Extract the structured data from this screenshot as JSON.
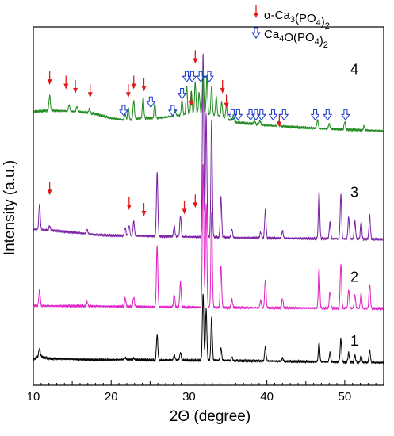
{
  "chart_data": {
    "type": "line",
    "title": "",
    "xlabel": "2Θ (degree)",
    "ylabel": "Intensity (a.u.)",
    "xlim": [
      10,
      55
    ],
    "xticks": [
      10,
      20,
      30,
      40,
      50
    ],
    "xtick_labels": [
      "10",
      "20",
      "30",
      "40",
      "50"
    ],
    "yticks": [],
    "grid": false,
    "legend": {
      "placement": "top-right",
      "entries": [
        {
          "marker": "filled-arrow",
          "color": "#e31a1c",
          "label_parts": [
            {
              "t": "α-Ca"
            },
            {
              "t": "3",
              "sub": true
            },
            {
              "t": "(PO"
            },
            {
              "t": "4",
              "sub": true
            },
            {
              "t": ")"
            },
            {
              "t": "2",
              "sub": true
            }
          ]
        },
        {
          "marker": "open-arrow",
          "color": "#1f3fd1",
          "label_parts": [
            {
              "t": "Ca"
            },
            {
              "t": "4",
              "sub": true
            },
            {
              "t": "O(PO"
            },
            {
              "t": "4",
              "sub": true
            },
            {
              "t": ")"
            },
            {
              "t": "2",
              "sub": true
            }
          ]
        }
      ]
    },
    "series": [
      {
        "name": "1",
        "color": "#000000",
        "baseline": 0,
        "background": [
          [
            10,
            0.06
          ],
          [
            10.7,
            0.14
          ],
          [
            12,
            0.08
          ],
          [
            14,
            0.07
          ],
          [
            16,
            0.06
          ],
          [
            18,
            0.05
          ],
          [
            20,
            0.05
          ],
          [
            22,
            0.06
          ],
          [
            24,
            0.05
          ],
          [
            26,
            0.04
          ],
          [
            28,
            0.05
          ],
          [
            30,
            0.04
          ],
          [
            33,
            0.04
          ],
          [
            36,
            0.03
          ],
          [
            40,
            0.02
          ],
          [
            44,
            0.01
          ],
          [
            48,
            0.0
          ],
          [
            52,
            -0.01
          ],
          [
            55,
            -0.02
          ]
        ],
        "peaks": [
          [
            10.8,
            0.18
          ],
          [
            21.8,
            0.04
          ],
          [
            22.9,
            0.03
          ],
          [
            25.9,
            0.6
          ],
          [
            28.1,
            0.12
          ],
          [
            28.9,
            0.18
          ],
          [
            31.8,
            1.58
          ],
          [
            32.2,
            1.2
          ],
          [
            32.9,
            1.0
          ],
          [
            34.1,
            0.3
          ],
          [
            35.5,
            0.08
          ],
          [
            39.8,
            0.35
          ],
          [
            42.0,
            0.08
          ],
          [
            46.7,
            0.46
          ],
          [
            48.1,
            0.22
          ],
          [
            49.5,
            0.55
          ],
          [
            50.5,
            0.22
          ],
          [
            51.3,
            0.16
          ],
          [
            52.1,
            0.16
          ],
          [
            53.2,
            0.3
          ]
        ]
      },
      {
        "name": "2",
        "color": "#e020c8",
        "baseline": 1.3,
        "background": [
          [
            10,
            0.02
          ],
          [
            15,
            0.02
          ],
          [
            25,
            0.0
          ],
          [
            35,
            -0.02
          ],
          [
            45,
            -0.03
          ],
          [
            55,
            -0.04
          ]
        ],
        "peaks": [
          [
            10.8,
            0.38
          ],
          [
            16.9,
            0.1
          ],
          [
            21.8,
            0.2
          ],
          [
            22.9,
            0.22
          ],
          [
            25.9,
            1.45
          ],
          [
            28.1,
            0.3
          ],
          [
            28.9,
            0.58
          ],
          [
            31.8,
            3.4
          ],
          [
            32.2,
            2.45
          ],
          [
            32.9,
            2.25
          ],
          [
            34.1,
            0.98
          ],
          [
            35.5,
            0.2
          ],
          [
            39.2,
            0.18
          ],
          [
            39.8,
            0.66
          ],
          [
            42.0,
            0.22
          ],
          [
            46.7,
            0.95
          ],
          [
            48.1,
            0.4
          ],
          [
            49.5,
            1.05
          ],
          [
            50.5,
            0.45
          ],
          [
            51.3,
            0.32
          ],
          [
            52.1,
            0.36
          ],
          [
            53.2,
            0.58
          ]
        ]
      },
      {
        "name": "3",
        "color": "#7a1fa3",
        "baseline": 2.95,
        "background": [
          [
            10,
            0.18
          ],
          [
            12,
            0.16
          ],
          [
            14,
            0.12
          ],
          [
            16,
            0.09
          ],
          [
            18,
            0.05
          ],
          [
            20,
            0.03
          ],
          [
            24,
            0.02
          ],
          [
            30,
            0.0
          ],
          [
            40,
            -0.03
          ],
          [
            55,
            -0.06
          ]
        ],
        "peaks": [
          [
            10.8,
            0.6
          ],
          [
            12.1,
            0.1
          ],
          [
            16.9,
            0.1
          ],
          [
            21.8,
            0.2
          ],
          [
            22.3,
            0.25
          ],
          [
            22.9,
            0.35
          ],
          [
            25.9,
            1.5
          ],
          [
            28.1,
            0.25
          ],
          [
            28.9,
            0.5
          ],
          [
            31.8,
            4.35
          ],
          [
            32.2,
            2.9
          ],
          [
            32.9,
            2.75
          ],
          [
            34.1,
            0.95
          ],
          [
            35.5,
            0.2
          ],
          [
            39.2,
            0.14
          ],
          [
            39.8,
            0.66
          ],
          [
            42.0,
            0.18
          ],
          [
            46.7,
            1.12
          ],
          [
            48.1,
            0.4
          ],
          [
            49.5,
            1.05
          ],
          [
            50.5,
            0.52
          ],
          [
            51.3,
            0.42
          ],
          [
            52.1,
            0.42
          ],
          [
            53.2,
            0.56
          ]
        ]
      },
      {
        "name": "4",
        "color": "#1f8a1f",
        "baseline": 5.8,
        "background": [
          [
            10,
            0.1
          ],
          [
            12,
            0.13
          ],
          [
            14,
            0.12
          ],
          [
            16,
            0.1
          ],
          [
            18,
            0.05
          ],
          [
            20,
            -0.05
          ],
          [
            22,
            -0.1
          ],
          [
            24,
            -0.05
          ],
          [
            26,
            -0.05
          ],
          [
            28,
            0.0
          ],
          [
            30,
            0.05
          ],
          [
            32,
            0.05
          ],
          [
            34,
            0.0
          ],
          [
            36,
            -0.15
          ],
          [
            40,
            -0.22
          ],
          [
            45,
            -0.28
          ],
          [
            50,
            -0.32
          ],
          [
            55,
            -0.35
          ]
        ],
        "peaks": [
          [
            12.1,
            0.35
          ],
          [
            14.6,
            0.15
          ],
          [
            15.6,
            0.12
          ],
          [
            17.2,
            0.1
          ],
          [
            21.8,
            0.15
          ],
          [
            22.2,
            0.3
          ],
          [
            22.9,
            0.45
          ],
          [
            24.1,
            0.5
          ],
          [
            25.6,
            0.35
          ],
          [
            28.2,
            0.15
          ],
          [
            29.1,
            0.35
          ],
          [
            29.7,
            0.65
          ],
          [
            30.3,
            0.55
          ],
          [
            30.8,
            0.75
          ],
          [
            31.3,
            0.5
          ],
          [
            31.8,
            1.05
          ],
          [
            32.3,
            0.9
          ],
          [
            32.9,
            0.7
          ],
          [
            33.5,
            0.45
          ],
          [
            34.2,
            0.35
          ],
          [
            34.8,
            0.3
          ],
          [
            35.7,
            0.15
          ],
          [
            38.4,
            0.1
          ],
          [
            39.1,
            0.1
          ],
          [
            41.5,
            0.12
          ],
          [
            46.5,
            0.2
          ],
          [
            48.0,
            0.12
          ],
          [
            50.0,
            0.18
          ],
          [
            52.5,
            0.1
          ]
        ]
      }
    ],
    "series_labels_y": [
      {
        "name": "1",
        "y": 0.5
      },
      {
        "name": "2",
        "y": 2.0
      },
      {
        "name": "3",
        "y": 4.0
      },
      {
        "name": "4",
        "y": 6.9
      }
    ],
    "markers": [
      {
        "x": 12.1,
        "y": 6.85,
        "kind": "filled",
        "color": "#e31a1c"
      },
      {
        "x": 14.2,
        "y": 6.75,
        "kind": "filled",
        "color": "#e31a1c"
      },
      {
        "x": 15.4,
        "y": 6.65,
        "kind": "filled",
        "color": "#e31a1c"
      },
      {
        "x": 17.3,
        "y": 6.55,
        "kind": "filled",
        "color": "#e31a1c"
      },
      {
        "x": 22.2,
        "y": 6.55,
        "kind": "filled",
        "color": "#e31a1c"
      },
      {
        "x": 22.9,
        "y": 6.75,
        "kind": "filled",
        "color": "#e31a1c"
      },
      {
        "x": 24.2,
        "y": 6.7,
        "kind": "filled",
        "color": "#e31a1c"
      },
      {
        "x": 30.8,
        "y": 7.35,
        "kind": "filled",
        "color": "#e31a1c"
      },
      {
        "x": 30.3,
        "y": 6.35,
        "kind": "filled",
        "color": "#e31a1c"
      },
      {
        "x": 34.3,
        "y": 6.65,
        "kind": "filled",
        "color": "#e31a1c"
      },
      {
        "x": 34.8,
        "y": 6.3,
        "kind": "filled",
        "color": "#e31a1c"
      },
      {
        "x": 41.6,
        "y": 5.85,
        "kind": "filled",
        "color": "#e31a1c"
      },
      {
        "x": 21.6,
        "y": 6.05,
        "kind": "open",
        "color": "#1f3fd1"
      },
      {
        "x": 25.1,
        "y": 6.25,
        "kind": "open",
        "color": "#1f3fd1"
      },
      {
        "x": 27.9,
        "y": 6.05,
        "kind": "open",
        "color": "#1f3fd1"
      },
      {
        "x": 29.1,
        "y": 6.45,
        "kind": "open",
        "color": "#1f3fd1"
      },
      {
        "x": 29.7,
        "y": 6.85,
        "kind": "open",
        "color": "#1f3fd1"
      },
      {
        "x": 30.4,
        "y": 6.85,
        "kind": "open",
        "color": "#1f3fd1"
      },
      {
        "x": 31.5,
        "y": 6.85,
        "kind": "open",
        "color": "#1f3fd1"
      },
      {
        "x": 32.6,
        "y": 6.85,
        "kind": "open",
        "color": "#1f3fd1"
      },
      {
        "x": 35.6,
        "y": 5.95,
        "kind": "open",
        "color": "#1f3fd1"
      },
      {
        "x": 36.3,
        "y": 5.95,
        "kind": "open",
        "color": "#1f3fd1"
      },
      {
        "x": 37.9,
        "y": 5.95,
        "kind": "open",
        "color": "#1f3fd1"
      },
      {
        "x": 38.6,
        "y": 5.95,
        "kind": "open",
        "color": "#1f3fd1"
      },
      {
        "x": 39.3,
        "y": 5.95,
        "kind": "open",
        "color": "#1f3fd1"
      },
      {
        "x": 40.8,
        "y": 5.95,
        "kind": "open",
        "color": "#1f3fd1"
      },
      {
        "x": 42.2,
        "y": 5.95,
        "kind": "open",
        "color": "#1f3fd1"
      },
      {
        "x": 46.2,
        "y": 5.95,
        "kind": "open",
        "color": "#1f3fd1"
      },
      {
        "x": 47.8,
        "y": 5.95,
        "kind": "open",
        "color": "#1f3fd1"
      },
      {
        "x": 50.1,
        "y": 5.95,
        "kind": "open",
        "color": "#1f3fd1"
      },
      {
        "x": 22.3,
        "y": 3.9,
        "kind": "filled",
        "color": "#e31a1c"
      },
      {
        "x": 24.2,
        "y": 3.75,
        "kind": "filled",
        "color": "#e31a1c"
      },
      {
        "x": 12.1,
        "y": 4.25,
        "kind": "filled",
        "color": "#e31a1c"
      },
      {
        "x": 29.4,
        "y": 3.8,
        "kind": "filled",
        "color": "#e31a1c"
      },
      {
        "x": 30.8,
        "y": 3.95,
        "kind": "filled",
        "color": "#e31a1c"
      }
    ]
  }
}
